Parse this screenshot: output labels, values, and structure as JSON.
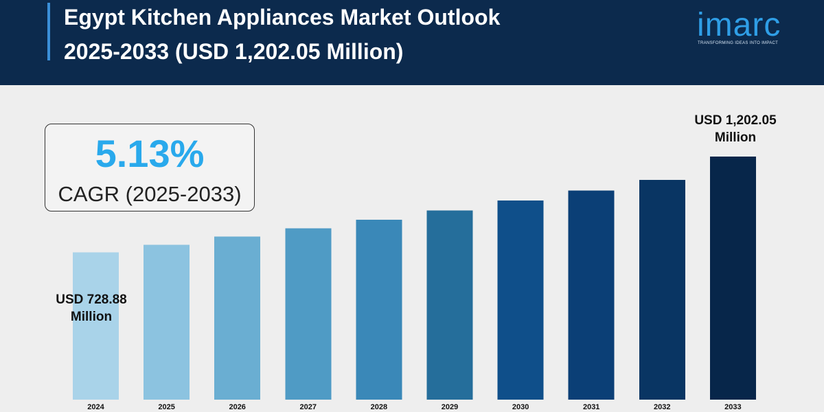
{
  "header": {
    "title_line1": "Egypt Kitchen Appliances Market Outlook",
    "title_line2": "2025-2033 (USD 1,202.05 Million)"
  },
  "logo": {
    "name": "imarc",
    "tagline": "TRANSFORMING IDEAS INTO IMPACT"
  },
  "cagr": {
    "value": "5.13%",
    "label": "CAGR (2025-2033)"
  },
  "callouts": {
    "start_line1": "USD 728.88",
    "start_line2": "Million",
    "end_line1": "USD 1,202.05",
    "end_line2": "Million"
  },
  "colors": {
    "header_bg": "#0c2a4d",
    "accent": "#29a9ec"
  },
  "chart_data": {
    "type": "bar",
    "categories": [
      "2024",
      "2025",
      "2026",
      "2027",
      "2028",
      "2029",
      "2030",
      "2031",
      "2032",
      "2033"
    ],
    "values": [
      728.88,
      766,
      806,
      847,
      890,
      936,
      984,
      1034,
      1087,
      1202.05
    ],
    "colors": [
      "#a9d3e9",
      "#8cc3e0",
      "#6aaed2",
      "#4f9bc5",
      "#3a88b8",
      "#256e9b",
      "#0f4f8a",
      "#0b3f76",
      "#093563",
      "#07264a"
    ],
    "ylim": [
      0,
      1250
    ],
    "grid": false,
    "legend": false,
    "title": "",
    "xlabel": "",
    "ylabel": ""
  }
}
